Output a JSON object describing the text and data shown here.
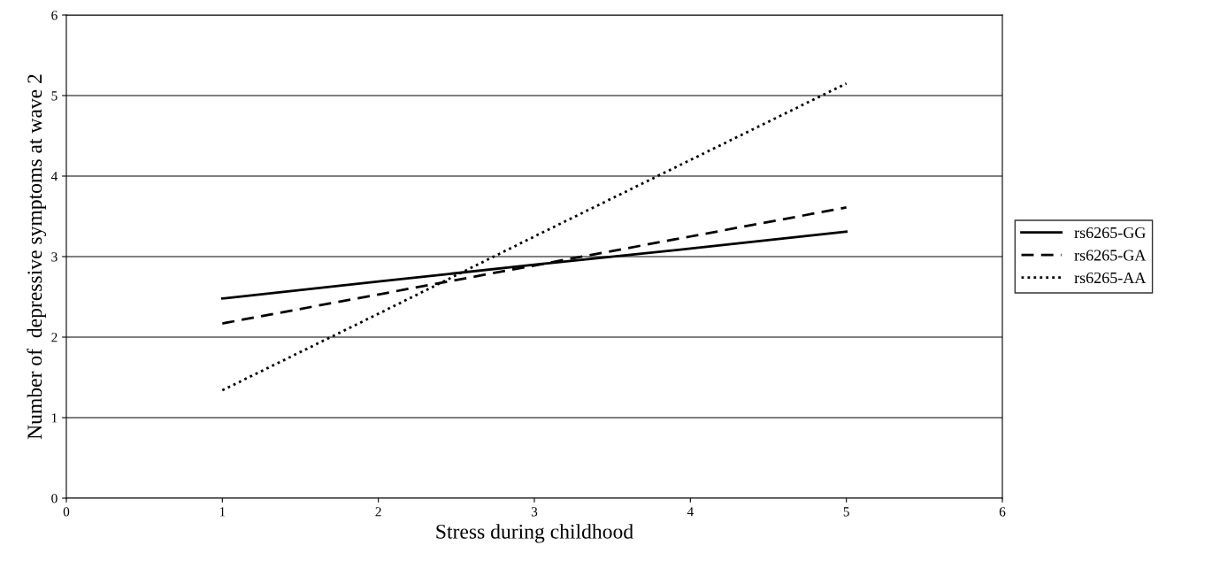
{
  "chart_data": {
    "type": "line",
    "xlabel": "Stress during childhood",
    "ylabel": "Number of  depressive symptoms at wave 2",
    "x": [
      1,
      2,
      3,
      4,
      5
    ],
    "series": [
      {
        "name": "rs6265-GG",
        "color": "#000000",
        "line_style": "solid",
        "values": [
          2.48,
          2.69,
          2.9,
          3.1,
          3.31
        ]
      },
      {
        "name": "rs6265-GA",
        "color": "#000000",
        "line_style": "dashed",
        "values": [
          2.17,
          2.53,
          2.89,
          3.25,
          3.61
        ]
      },
      {
        "name": "rs6265-AA",
        "color": "#000000",
        "line_style": "dotted",
        "values": [
          1.34,
          2.29,
          3.25,
          4.2,
          5.15
        ]
      }
    ],
    "xlim": [
      0,
      6
    ],
    "xticks": [
      0,
      1,
      2,
      3,
      4,
      5,
      6
    ],
    "ylim": [
      0,
      6
    ],
    "yticks": [
      0,
      1,
      2,
      3,
      4,
      5,
      6
    ],
    "grid": "y",
    "legend": "right",
    "marker": "none"
  }
}
